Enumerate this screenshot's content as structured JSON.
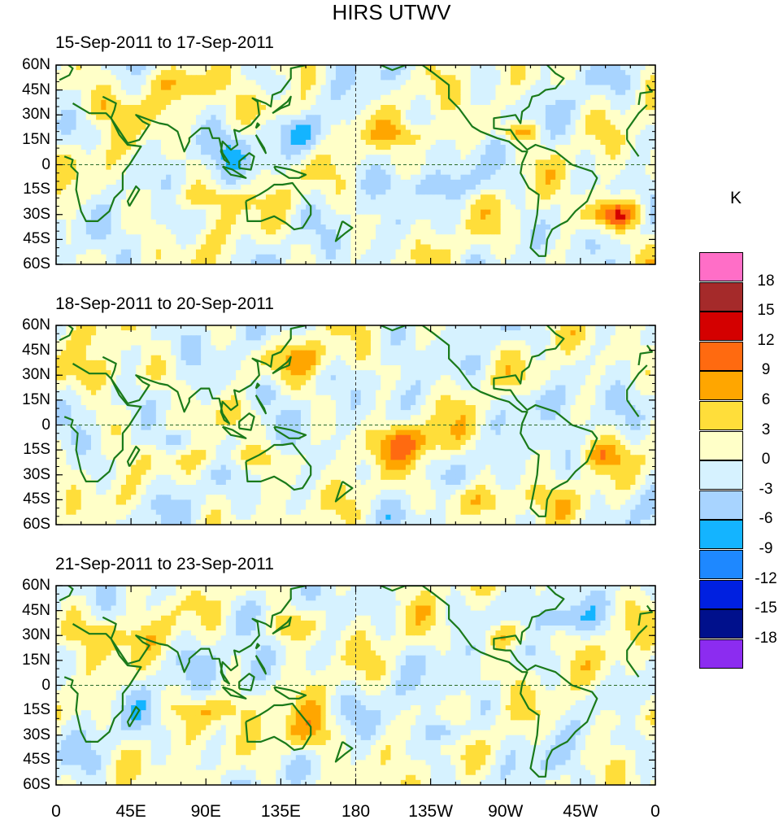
{
  "title": "HIRS UTWV",
  "units": "K",
  "panels": [
    {
      "title": "15-Sep-2011 to 17-Sep-2011"
    },
    {
      "title": "18-Sep-2011 to 20-Sep-2011"
    },
    {
      "title": "21-Sep-2011 to 23-Sep-2011"
    }
  ],
  "lat_labels": [
    "60N",
    "45N",
    "30N",
    "15N",
    "0",
    "15S",
    "30S",
    "45S",
    "60S"
  ],
  "lon_labels": [
    "0",
    "45E",
    "90E",
    "135E",
    "180",
    "135W",
    "90W",
    "45W",
    "0"
  ],
  "colorbar": {
    "labels": [
      "18",
      "15",
      "12",
      "9",
      "6",
      "3",
      "0",
      "-3",
      "-6",
      "-9",
      "-12",
      "-15",
      "-18"
    ],
    "colors": [
      "#ff6ec7",
      "#a52a2a",
      "#d40000",
      "#ff6a10",
      "#ffa600",
      "#ffde3a",
      "#ffffc8",
      "#d6f2ff",
      "#a8d4ff",
      "#14b4ff",
      "#1e88ff",
      "#0020e0",
      "#00108c",
      "#8c2cf0"
    ]
  },
  "anomaly_features": [
    [
      [
        135,
        35,
        14,
        6,
        5
      ],
      [
        90,
        -20,
        20,
        5,
        5
      ],
      [
        -82,
        20,
        8,
        4,
        9
      ],
      [
        -25,
        -30,
        12,
        6,
        12
      ],
      [
        -150,
        18,
        20,
        5,
        4
      ],
      [
        30,
        35,
        20,
        7,
        5
      ],
      [
        100,
        8,
        12,
        8,
        -4
      ],
      [
        150,
        15,
        12,
        8,
        -4
      ],
      [
        -130,
        -12,
        25,
        5,
        -3
      ],
      [
        60,
        50,
        25,
        6,
        4
      ]
    ],
    [
      [
        -150,
        -10,
        20,
        8,
        7
      ],
      [
        110,
        -20,
        20,
        6,
        5
      ],
      [
        -35,
        -18,
        10,
        6,
        6
      ],
      [
        70,
        -10,
        8,
        5,
        -7
      ],
      [
        120,
        20,
        10,
        6,
        -5
      ],
      [
        30,
        30,
        20,
        8,
        5
      ],
      [
        -100,
        -45,
        25,
        6,
        5
      ],
      [
        150,
        40,
        20,
        6,
        4
      ],
      [
        -70,
        15,
        12,
        6,
        -4
      ]
    ],
    [
      [
        150,
        -30,
        12,
        10,
        8
      ],
      [
        140,
        35,
        12,
        6,
        6
      ],
      [
        -125,
        -28,
        8,
        5,
        -7
      ],
      [
        -90,
        30,
        10,
        5,
        6
      ],
      [
        -55,
        40,
        10,
        6,
        -6
      ],
      [
        95,
        -15,
        15,
        5,
        5
      ],
      [
        120,
        10,
        10,
        8,
        -4
      ],
      [
        30,
        30,
        25,
        7,
        4
      ],
      [
        -20,
        -20,
        12,
        6,
        4
      ]
    ]
  ]
}
